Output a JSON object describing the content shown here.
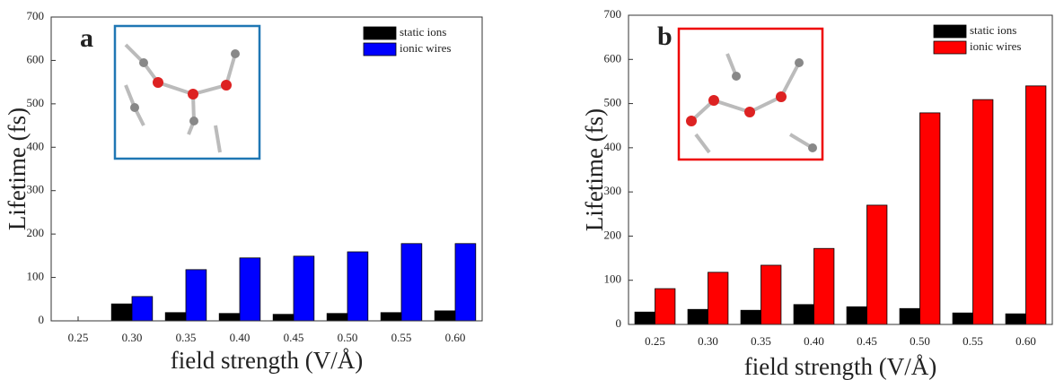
{
  "chart_data": [
    {
      "type": "bar",
      "panel_label": "a",
      "xlabel": "field strength (V/Å)",
      "ylabel": "Lifetime (fs)",
      "categories": [
        "0.25",
        "0.30",
        "0.35",
        "0.40",
        "0.45",
        "0.50",
        "0.55",
        "0.60"
      ],
      "series": [
        {
          "name": "static ions",
          "color": "#000000",
          "values": [
            0,
            39,
            19,
            17,
            15,
            17,
            19,
            23
          ]
        },
        {
          "name": "ionic wires",
          "color": "#0000ff",
          "values": [
            0,
            56,
            118,
            145,
            149,
            159,
            178,
            178
          ]
        }
      ],
      "ylim": [
        0,
        700
      ],
      "yticks": [
        0,
        100,
        200,
        300,
        400,
        500,
        600,
        700
      ],
      "legend": "upper right"
    },
    {
      "type": "bar",
      "panel_label": "b",
      "xlabel": "field strength (V/Å)",
      "ylabel": "Lifetime (fs)",
      "categories": [
        "0.25",
        "0.30",
        "0.35",
        "0.40",
        "0.45",
        "0.50",
        "0.55",
        "0.60"
      ],
      "series": [
        {
          "name": "static ions",
          "color": "#000000",
          "values": [
            28,
            34,
            32,
            45,
            40,
            36,
            26,
            24
          ]
        },
        {
          "name": "ionic wires",
          "color": "#ff0000",
          "values": [
            81,
            118,
            134,
            172,
            270,
            479,
            509,
            540
          ]
        }
      ],
      "ylim": [
        0,
        700
      ],
      "yticks": [
        0,
        100,
        200,
        300,
        400,
        500,
        600,
        700
      ],
      "legend": "upper right"
    }
  ]
}
